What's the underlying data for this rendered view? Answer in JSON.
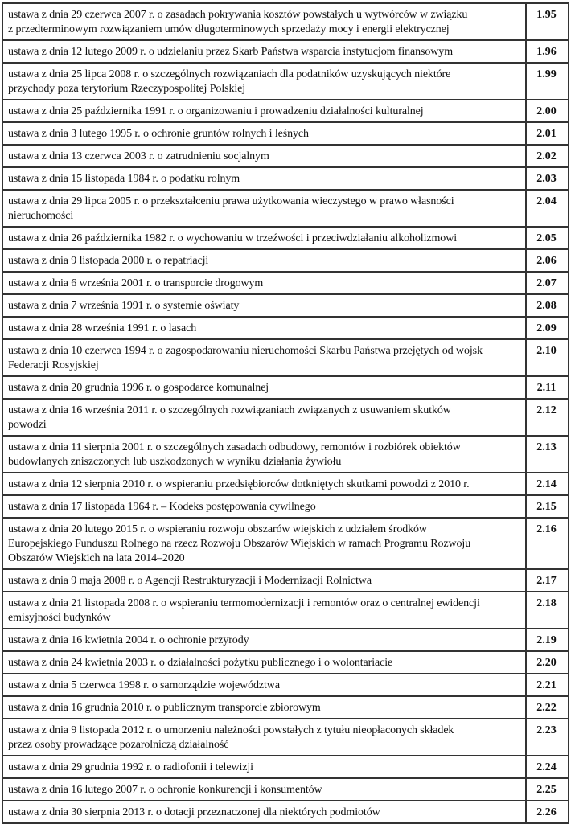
{
  "rows": [
    {
      "title": "ustawa z dnia 29 czerwca 2007 r. o zasadach pokrywania kosztów powstałych u wytwórców w związku\nz przedterminowym rozwiązaniem umów długoterminowych sprzedaży mocy i energii elektrycznej",
      "number": "1.95"
    },
    {
      "title": "ustawa z dnia 12 lutego 2009 r. o udzielaniu przez Skarb Państwa wsparcia instytucjom finansowym",
      "number": "1.96"
    },
    {
      "title": "ustawa z dnia 25 lipca 2008 r. o szczególnych rozwiązaniach dla podatników uzyskujących niektóre\nprzychody poza terytorium Rzeczypospolitej Polskiej",
      "number": "1.99"
    },
    {
      "title": "ustawa z dnia 25 października 1991 r. o organizowaniu i prowadzeniu działalności kulturalnej",
      "number": "2.00"
    },
    {
      "title": "ustawa z dnia 3 lutego 1995 r. o ochronie gruntów rolnych i leśnych",
      "number": "2.01"
    },
    {
      "title": "ustawa z dnia 13 czerwca 2003 r. o zatrudnieniu socjalnym",
      "number": "2.02"
    },
    {
      "title": "ustawa z dnia 15 listopada 1984 r. o podatku rolnym",
      "number": "2.03"
    },
    {
      "title": "ustawa z dnia 29 lipca 2005 r. o przekształceniu prawa użytkowania wieczystego w prawo własności\nnieruchomości",
      "number": "2.04"
    },
    {
      "title": "ustawa z dnia 26 października 1982 r. o wychowaniu w trzeźwości i przeciwdziałaniu alkoholizmowi",
      "number": "2.05"
    },
    {
      "title": "ustawa z dnia 9 listopada 2000 r. o repatriacji",
      "number": "2.06"
    },
    {
      "title": "ustawa z dnia 6 września 2001 r. o transporcie drogowym",
      "number": "2.07"
    },
    {
      "title": "ustawa z dnia 7 września 1991 r. o systemie oświaty",
      "number": "2.08"
    },
    {
      "title": "ustawa z dnia 28 września 1991 r. o lasach",
      "number": "2.09"
    },
    {
      "title": "ustawa z dnia 10 czerwca 1994 r. o zagospodarowaniu nieruchomości Skarbu Państwa przejętych od wojsk\nFederacji Rosyjskiej",
      "number": "2.10"
    },
    {
      "title": "ustawa z dnia 20 grudnia 1996 r. o gospodarce komunalnej",
      "number": "2.11"
    },
    {
      "title": "ustawa z dnia 16 września 2011 r. o szczególnych rozwiązaniach związanych z usuwaniem skutków\npowodzi",
      "number": "2.12"
    },
    {
      "title": "ustawa z dnia 11 sierpnia 2001 r. o szczególnych zasadach odbudowy, remontów i rozbiórek obiektów\nbudowlanych zniszczonych lub uszkodzonych w wyniku działania żywiołu",
      "number": "2.13"
    },
    {
      "title": "ustawa z dnia 12 sierpnia 2010 r. o wspieraniu przedsiębiorców dotkniętych skutkami powodzi z 2010 r.",
      "number": "2.14"
    },
    {
      "title": "ustawa z dnia 17 listopada 1964 r. – Kodeks postępowania cywilnego",
      "number": "2.15"
    },
    {
      "title": "ustawa z dnia 20 lutego 2015 r. o wspieraniu rozwoju obszarów wiejskich z udziałem środków\nEuropejskiego Funduszu Rolnego na rzecz Rozwoju Obszarów Wiejskich w ramach Programu Rozwoju\nObszarów Wiejskich na lata 2014–2020",
      "number": "2.16"
    },
    {
      "title": "ustawa z dnia 9 maja 2008 r. o Agencji Restrukturyzacji i Modernizacji Rolnictwa",
      "number": "2.17"
    },
    {
      "title": "ustawa z dnia 21 listopada 2008 r. o wspieraniu termomodernizacji i remontów oraz o centralnej ewidencji\nemisyjności budynków",
      "number": "2.18"
    },
    {
      "title": "ustawa z dnia 16 kwietnia 2004 r. o ochronie przyrody",
      "number": "2.19"
    },
    {
      "title": "ustawa z dnia 24 kwietnia 2003 r. o działalności pożytku publicznego i o wolontariacie",
      "number": "2.20"
    },
    {
      "title": "ustawa z dnia 5 czerwca 1998 r. o samorządzie województwa",
      "number": "2.21"
    },
    {
      "title": "ustawa z dnia 16 grudnia 2010 r. o publicznym transporcie zbiorowym",
      "number": "2.22"
    },
    {
      "title": "ustawa z dnia 9 listopada 2012 r. o umorzeniu należności powstałych z tytułu nieopłaconych składek\nprzez osoby prowadzące pozarolniczą działalność",
      "number": "2.23"
    },
    {
      "title": "ustawa z dnia 29 grudnia 1992 r. o radiofonii i telewizji",
      "number": "2.24"
    },
    {
      "title": "ustawa z dnia 16 lutego 2007 r. o ochronie konkurencji i konsumentów",
      "number": "2.25"
    },
    {
      "title": "ustawa z dnia 30 sierpnia 2013 r. o dotacji przeznaczonej dla niektórych podmiotów",
      "number": "2.26"
    }
  ]
}
